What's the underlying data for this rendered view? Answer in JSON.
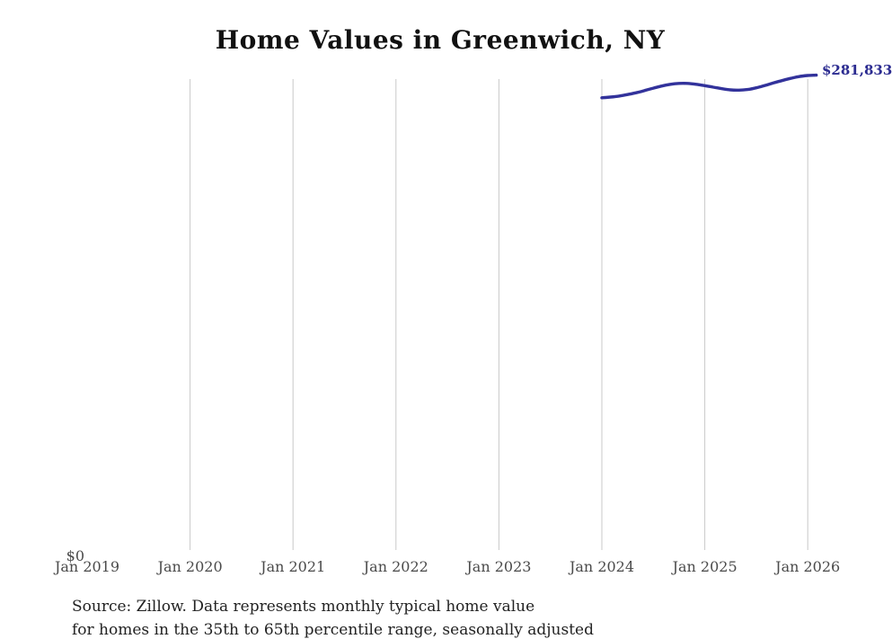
{
  "title": "Home Values in Greenwich, NY",
  "end_label": "$281,833",
  "y_zero_label": "$0",
  "source_line1": "Source: Zillow. Data represents monthly typical home value",
  "source_line2": "for homes in the 35th to 65th percentile range, seasonally adjusted",
  "colors": {
    "line": "#32329b",
    "end_label": "#2b2b90",
    "gridline": "#c9c9c9",
    "tick_text": "#4a4a4a",
    "title_text": "#111111",
    "source_text": "#222222",
    "background": "#ffffff"
  },
  "x_axis": {
    "ticks": [
      {
        "label": "Jan 2019",
        "year": 2019,
        "gridline": false
      },
      {
        "label": "Jan 2020",
        "year": 2020,
        "gridline": true
      },
      {
        "label": "Jan 2021",
        "year": 2021,
        "gridline": true
      },
      {
        "label": "Jan 2022",
        "year": 2022,
        "gridline": true
      },
      {
        "label": "Jan 2023",
        "year": 2023,
        "gridline": true
      },
      {
        "label": "Jan 2024",
        "year": 2024,
        "gridline": true
      },
      {
        "label": "Jan 2025",
        "year": 2025,
        "gridline": true
      },
      {
        "label": "Jan 2026",
        "year": 2026,
        "gridline": true
      }
    ]
  },
  "chart_data": {
    "type": "line",
    "title": "Home Values in Greenwich, NY",
    "series_name": "Typical home value",
    "xlabel": "",
    "ylabel": "",
    "ylim": [
      0,
      290000
    ],
    "x_range": [
      "Jan 2019",
      "Jan 2026"
    ],
    "data_range": [
      "2024-01",
      "2026-02"
    ],
    "grid": "vertical-only",
    "legend": "none",
    "end_annotation": "$281,833",
    "x": [
      "2024-01",
      "2024-02",
      "2024-03",
      "2024-04",
      "2024-05",
      "2024-06",
      "2024-07",
      "2024-08",
      "2024-09",
      "2024-10",
      "2024-11",
      "2024-12",
      "2025-01",
      "2025-02",
      "2025-03",
      "2025-04",
      "2025-05",
      "2025-06",
      "2025-07",
      "2025-08",
      "2025-09",
      "2025-10",
      "2025-11",
      "2025-12",
      "2026-01",
      "2026-02"
    ],
    "values": [
      268400,
      268800,
      269400,
      270300,
      271400,
      272700,
      274100,
      275400,
      276400,
      276900,
      276900,
      276400,
      275600,
      274700,
      273800,
      273100,
      272900,
      273300,
      274300,
      275700,
      277200,
      278600,
      279900,
      281000,
      281600,
      281833
    ]
  }
}
